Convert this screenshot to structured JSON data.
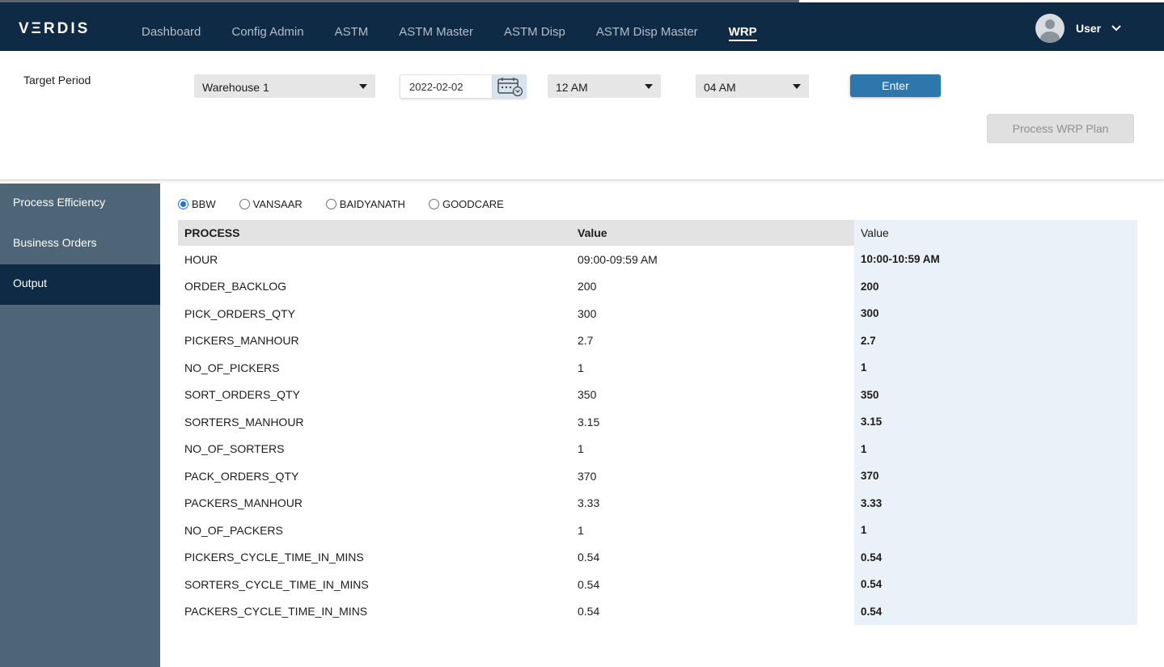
{
  "brand": {
    "logo": "VΞRDIS"
  },
  "nav": {
    "items": [
      {
        "label": "Dashboard",
        "active": false
      },
      {
        "label": "Config Admin",
        "active": false
      },
      {
        "label": "ASTM",
        "active": false
      },
      {
        "label": "ASTM Master",
        "active": false
      },
      {
        "label": "ASTM Disp",
        "active": false
      },
      {
        "label": "ASTM Disp Master",
        "active": false
      },
      {
        "label": "WRP",
        "active": true
      }
    ]
  },
  "user": {
    "name": "User",
    "avatar_icon": "user-avatar-icon",
    "menu_icon": "chevron-down-icon"
  },
  "filters": {
    "target_period_label": "Target Period",
    "warehouse": "Warehouse 1",
    "date": "2022-02-02",
    "calendar_icon": "calendar-icon",
    "from_time": "12 AM",
    "to_time": "04 AM",
    "enter_label": "Enter",
    "process_label": "Process WRP Plan"
  },
  "sidebar": {
    "items": [
      {
        "label": "Process Efficiency",
        "active": false
      },
      {
        "label": "Business Orders",
        "active": false
      },
      {
        "label": "Output",
        "active": true
      }
    ]
  },
  "clients": {
    "options": [
      {
        "label": "BBW",
        "checked": true
      },
      {
        "label": "VANSAAR",
        "checked": false
      },
      {
        "label": "BAIDYANATH",
        "checked": false
      },
      {
        "label": "GOODCARE",
        "checked": false
      }
    ]
  },
  "table": {
    "headers": [
      "PROCESS",
      "Value",
      "Value"
    ],
    "rows": [
      [
        "HOUR",
        "09:00-09:59 AM",
        "10:00-10:59 AM"
      ],
      [
        "ORDER_BACKLOG",
        "200",
        "200"
      ],
      [
        "PICK_ORDERS_QTY",
        "300",
        "300"
      ],
      [
        "PICKERS_MANHOUR",
        "2.7",
        "2.7"
      ],
      [
        "NO_OF_PICKERS",
        "1",
        "1"
      ],
      [
        "SORT_ORDERS_QTY",
        "350",
        "350"
      ],
      [
        "SORTERS_MANHOUR",
        "3.15",
        "3.15"
      ],
      [
        "NO_OF_SORTERS",
        "1",
        "1"
      ],
      [
        "PACK_ORDERS_QTY",
        "370",
        "370"
      ],
      [
        "PACKERS_MANHOUR",
        "3.33",
        "3.33"
      ],
      [
        "NO_OF_PACKERS",
        "1",
        "1"
      ],
      [
        "PICKERS_CYCLE_TIME_IN_MINS",
        "0.54",
        "0.54"
      ],
      [
        "SORTERS_CYCLE_TIME_IN_MINS",
        "0.54",
        "0.54"
      ],
      [
        "PACKERS_CYCLE_TIME_IN_MINS",
        "0.54",
        "0.54"
      ]
    ]
  }
}
